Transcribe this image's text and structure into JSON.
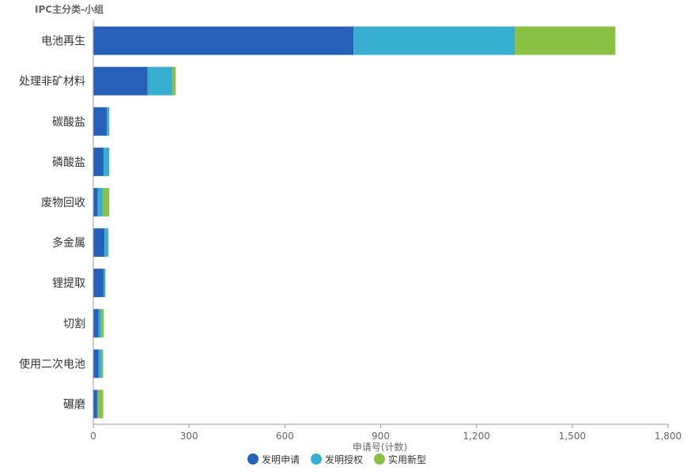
{
  "chart_data": {
    "type": "bar",
    "orientation": "horizontal",
    "stacked": true,
    "group_axis_label": "IPC主分类-小组",
    "xlabel": "申请号(计数)",
    "xlim": [
      0,
      1800
    ],
    "xticks": [
      "0",
      "300",
      "600",
      "900",
      "1,200",
      "1,500",
      "1,800"
    ],
    "xtick_values": [
      0,
      300,
      600,
      900,
      1200,
      1500,
      1800
    ],
    "categories": [
      "电池再生",
      "处理非矿材料",
      "碳酸盐",
      "磷酸盐",
      "废物回收",
      "多金属",
      "锂提取",
      "切割",
      "使用二次电池",
      "碾磨"
    ],
    "series": [
      {
        "name": "发明申请",
        "color": "#2660b8",
        "values": [
          815,
          170,
          42,
          32,
          14,
          35,
          32,
          17,
          17,
          12
        ]
      },
      {
        "name": "发明授权",
        "color": "#38aed1",
        "values": [
          505,
          78,
          8,
          18,
          16,
          12,
          6,
          8,
          10,
          3
        ]
      },
      {
        "name": "实用新型",
        "color": "#8ac043",
        "values": [
          315,
          10,
          0,
          0,
          20,
          0,
          0,
          8,
          4,
          16
        ]
      }
    ],
    "grid": false,
    "legend_position": "bottom-center"
  }
}
